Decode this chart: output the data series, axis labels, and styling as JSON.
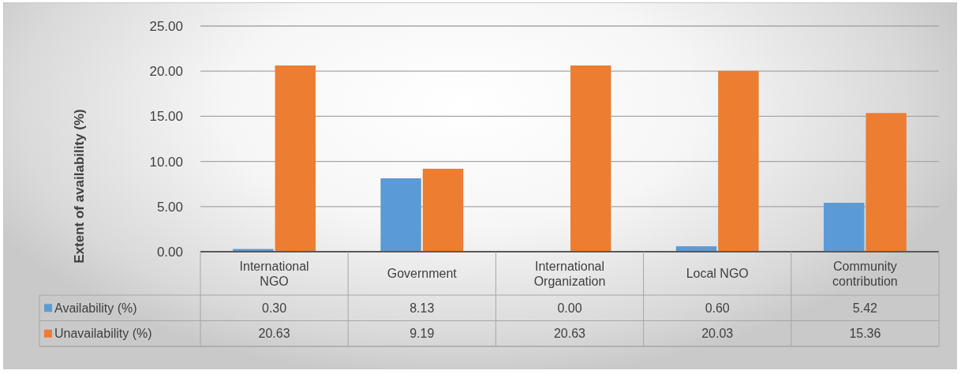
{
  "chart_data": {
    "type": "bar",
    "ylabel": "Extent of availability (%)",
    "categories": [
      "International NGO",
      "Government",
      "International Organization",
      "Local NGO",
      "Community contribution"
    ],
    "series": [
      {
        "name": "Availability (%)",
        "color": "#5b9bd5",
        "values": [
          0.3,
          8.13,
          0.0,
          0.6,
          5.42
        ],
        "value_labels": [
          "0.30",
          "8.13",
          "0.00",
          "0.60",
          "5.42"
        ]
      },
      {
        "name": "Unavailability (%)",
        "color": "#ed7d31",
        "values": [
          20.63,
          9.19,
          20.63,
          20.03,
          15.36
        ],
        "value_labels": [
          "20.63",
          "9.19",
          "20.63",
          "20.03",
          "15.36"
        ]
      }
    ],
    "ylim": [
      0,
      25
    ],
    "yticks": [
      {
        "value": 0,
        "label": "0.00"
      },
      {
        "value": 5,
        "label": "5.00"
      },
      {
        "value": 10,
        "label": "10.00"
      },
      {
        "value": 15,
        "label": "15.00"
      },
      {
        "value": 20,
        "label": "20.00"
      },
      {
        "value": 25,
        "label": "25.00"
      }
    ],
    "grid": "y",
    "legend": "bottom"
  }
}
